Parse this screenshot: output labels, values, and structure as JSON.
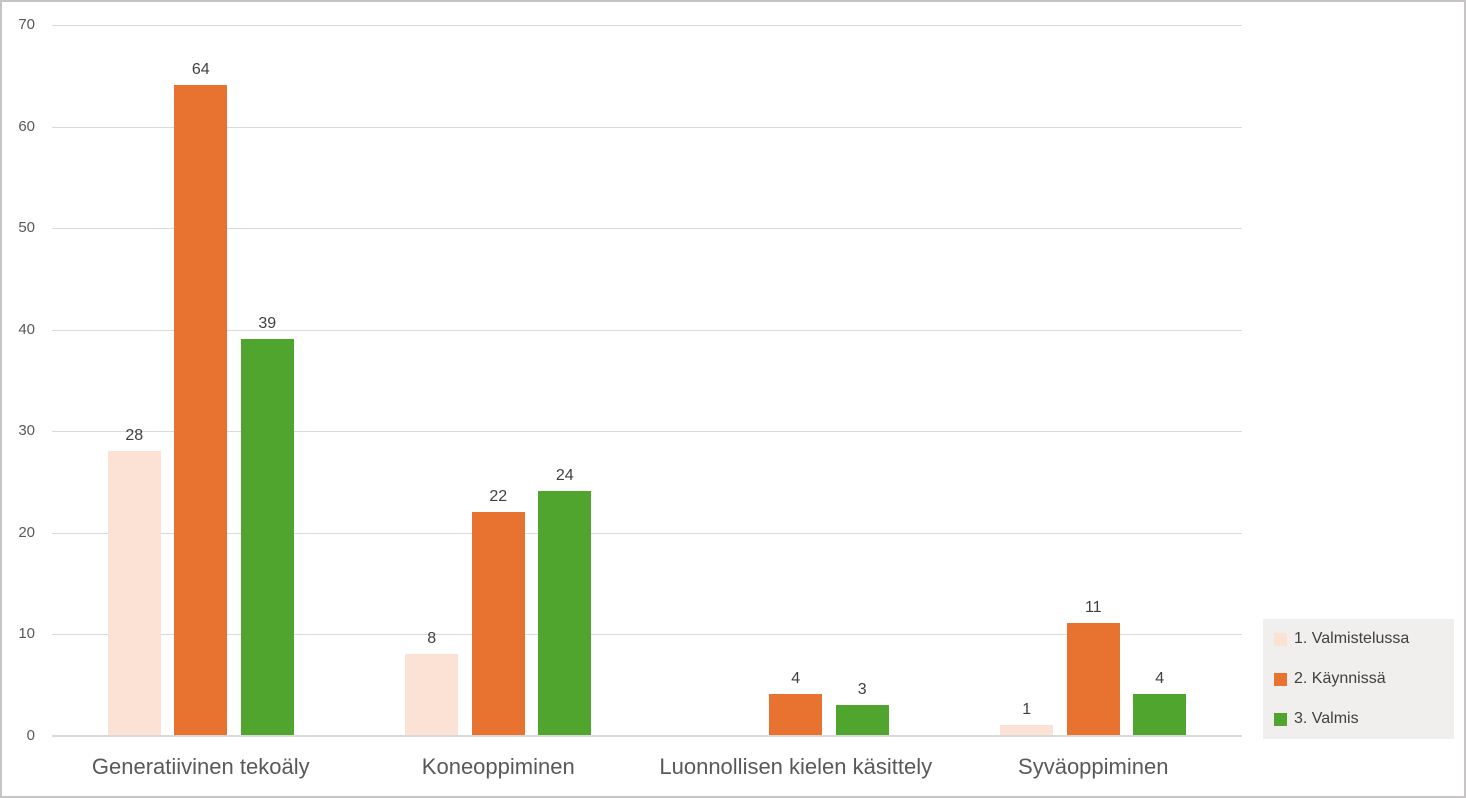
{
  "chart_data": {
    "type": "bar",
    "title": "",
    "categories": [
      "Generatiivinen tekoäly",
      "Koneoppiminen",
      "Luonnollisen kielen käsittely",
      "Syväoppiminen"
    ],
    "series": [
      {
        "name": "1. Valmistelussa",
        "color": "#FBE2D5",
        "values": [
          28,
          8,
          0,
          1
        ]
      },
      {
        "name": "2. Käynnissä",
        "color": "#E8722F",
        "values": [
          64,
          22,
          4,
          11
        ]
      },
      {
        "name": "3. Valmis",
        "color": "#4FA52D",
        "values": [
          39,
          24,
          3,
          4
        ]
      }
    ],
    "y_axis": {
      "min": 0,
      "max": 70,
      "step": 10,
      "ticks": [
        0,
        10,
        20,
        30,
        40,
        50,
        60,
        70
      ]
    },
    "grid": true,
    "data_labels": true,
    "zero_value_bars_hidden": true,
    "legend_position": "right",
    "colors": {
      "gridline": "#D9D9D9",
      "axis_line": "#D9D9D9",
      "tick_text": "#595959",
      "category_text": "#595959",
      "data_label_text": "#404040",
      "legend_text": "#404040",
      "legend_background": "#F0EFEE",
      "frame_border": "#C6C4C5",
      "background": "#FFFFFF"
    }
  }
}
